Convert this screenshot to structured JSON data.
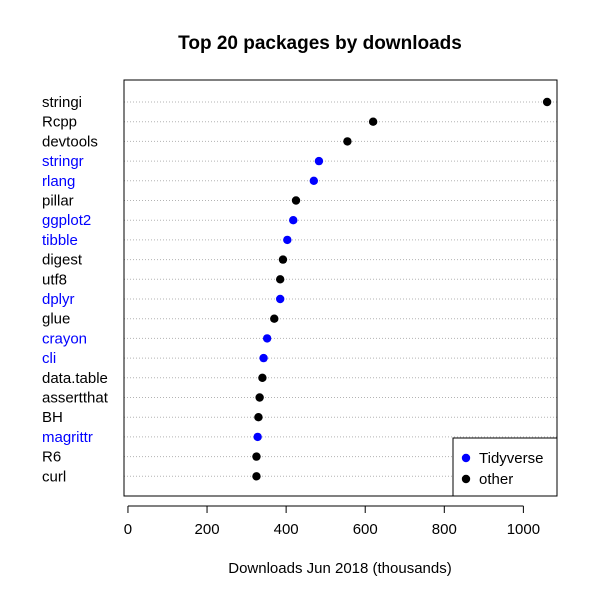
{
  "chart_data": {
    "type": "scatter",
    "subtype": "dotchart",
    "title": "Top 20 packages by downloads",
    "xlabel": "Downloads Jun 2018 (thousands)",
    "ylabel": "",
    "xlim": [
      -10,
      1085
    ],
    "xticks": [
      0,
      200,
      400,
      600,
      800,
      1000
    ],
    "grid": "horizontal-dotted",
    "legend_position": "bottom-right",
    "colors": {
      "Tidyverse": "#0000ff",
      "other": "#000000"
    },
    "legend": [
      {
        "label": "Tidyverse",
        "color": "#0000ff"
      },
      {
        "label": "other",
        "color": "#000000"
      }
    ],
    "points": [
      {
        "name": "stringi",
        "value": 1060,
        "group": "other"
      },
      {
        "name": "Rcpp",
        "value": 620,
        "group": "other"
      },
      {
        "name": "devtools",
        "value": 555,
        "group": "other"
      },
      {
        "name": "stringr",
        "value": 483,
        "group": "Tidyverse"
      },
      {
        "name": "rlang",
        "value": 470,
        "group": "Tidyverse"
      },
      {
        "name": "pillar",
        "value": 425,
        "group": "other"
      },
      {
        "name": "ggplot2",
        "value": 418,
        "group": "Tidyverse"
      },
      {
        "name": "tibble",
        "value": 403,
        "group": "Tidyverse"
      },
      {
        "name": "digest",
        "value": 392,
        "group": "other"
      },
      {
        "name": "utf8",
        "value": 385,
        "group": "other"
      },
      {
        "name": "dplyr",
        "value": 385,
        "group": "Tidyverse"
      },
      {
        "name": "glue",
        "value": 370,
        "group": "other"
      },
      {
        "name": "crayon",
        "value": 352,
        "group": "Tidyverse"
      },
      {
        "name": "cli",
        "value": 343,
        "group": "Tidyverse"
      },
      {
        "name": "data.table",
        "value": 340,
        "group": "other"
      },
      {
        "name": "assertthat",
        "value": 333,
        "group": "other"
      },
      {
        "name": "BH",
        "value": 330,
        "group": "other"
      },
      {
        "name": "magrittr",
        "value": 328,
        "group": "Tidyverse"
      },
      {
        "name": "R6",
        "value": 325,
        "group": "other"
      },
      {
        "name": "curl",
        "value": 325,
        "group": "other"
      }
    ]
  }
}
